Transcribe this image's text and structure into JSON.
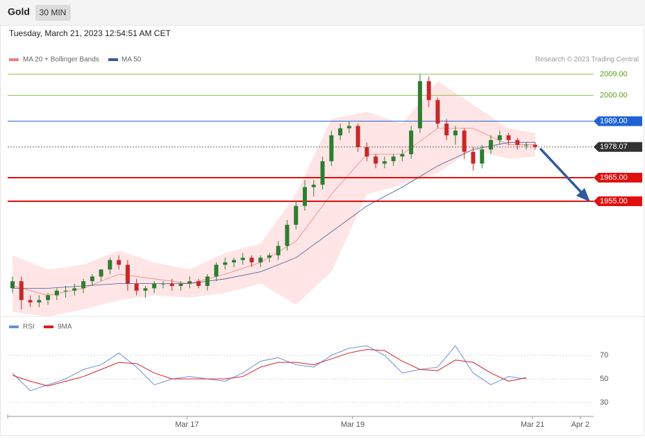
{
  "header": {
    "symbol": "Gold",
    "interval": "30 MIN",
    "timestamp": "Tuesday, March 21, 2023 12:54:51 AM CET",
    "credit": "Research © 2023 Trading Central"
  },
  "chart_data": [
    {
      "type": "candlestick",
      "up_color": "#2e7d32",
      "down_color": "#c62828",
      "xlim": [
        -0.55,
        65.6
      ],
      "ylim": [
        1907.2,
        2012.5
      ],
      "xticks": [
        {
          "value": 19.7,
          "label": "Mar 17"
        },
        {
          "value": 38.4,
          "label": "Mar 19"
        },
        {
          "value": 58.7,
          "label": "Mar 21"
        },
        {
          "value": 64.1,
          "label": "Apr 2"
        }
      ],
      "open": [
        1918,
        1921,
        1913,
        1912,
        1913,
        1915,
        1917,
        1917,
        1918,
        1921,
        1923,
        1926,
        1930,
        1928,
        1920,
        1917,
        1918,
        1920,
        1920,
        1919,
        1920,
        1921,
        1919,
        1923,
        1928,
        1929,
        1930,
        1931,
        1929,
        1931,
        1932,
        1936,
        1945,
        1953,
        1961,
        1962,
        1972,
        1983,
        1986,
        1987,
        1978,
        1974,
        1971,
        1972,
        1974,
        1975,
        1986,
        2006,
        1998,
        1988,
        1983,
        1985,
        1976,
        1971,
        1977,
        1981,
        1983,
        1981,
        1979,
        1979
      ],
      "high": [
        1923,
        1923,
        1915,
        1915,
        1916,
        1918,
        1919,
        1920,
        1922,
        1924,
        1926,
        1931,
        1932,
        1930,
        1922,
        1919,
        1921,
        1921,
        1922,
        1921,
        1923,
        1922,
        1924,
        1929,
        1931,
        1931,
        1933,
        1932,
        1932,
        1933,
        1938,
        1947,
        1955,
        1964,
        1964,
        1974,
        1985,
        1988,
        1989,
        1988,
        1980,
        1975,
        1974,
        1975,
        1977,
        1987,
        2009,
        2008,
        1999,
        1990,
        1987,
        1986,
        1978,
        1979,
        1983,
        1985,
        1984,
        1982,
        1980,
        1980
      ],
      "low": [
        1916,
        1909,
        1910,
        1910,
        1911,
        1913,
        1914,
        1915,
        1916,
        1919,
        1921,
        1924,
        1926,
        1917,
        1915,
        1914,
        1916,
        1918,
        1917,
        1917,
        1918,
        1918,
        1917,
        1921,
        1926,
        1927,
        1928,
        1927,
        1927,
        1929,
        1930,
        1934,
        1943,
        1951,
        1957,
        1960,
        1970,
        1981,
        1984,
        1976,
        1972,
        1969,
        1969,
        1970,
        1972,
        1973,
        1984,
        1995,
        1986,
        1981,
        1979,
        1973,
        1968,
        1969,
        1975,
        1979,
        1979,
        1977,
        1977,
        1977
      ],
      "close": [
        1921,
        1913,
        1912,
        1913,
        1915,
        1917,
        1917,
        1918,
        1921,
        1923,
        1926,
        1930,
        1928,
        1920,
        1917,
        1918,
        1920,
        1920,
        1919,
        1920,
        1921,
        1919,
        1923,
        1928,
        1929,
        1930,
        1931,
        1929,
        1931,
        1932,
        1936,
        1945,
        1953,
        1961,
        1962,
        1972,
        1983,
        1986,
        1987,
        1978,
        1974,
        1971,
        1972,
        1974,
        1975,
        1985,
        2006,
        1998,
        1988,
        1983,
        1985,
        1976,
        1971,
        1977,
        1981,
        1983,
        1981,
        1979,
        1979,
        1978.07
      ],
      "overlay_x": [
        0,
        4,
        8,
        12,
        16,
        20,
        24,
        28,
        32,
        36,
        40,
        44,
        48,
        52,
        56,
        59
      ],
      "bands": {
        "name": "MA 20 + Bollinger Bands",
        "color": "#f08080",
        "fill": "#ffdede",
        "upper": [
          1932,
          1926,
          1928,
          1934,
          1929,
          1926,
          1933,
          1937,
          1958,
          1990,
          1993,
          1988,
          2006,
          1996,
          1986,
          1984
        ],
        "middle": [
          1919,
          1915,
          1918,
          1924,
          1922,
          1920,
          1924,
          1929,
          1938,
          1958,
          1975,
          1975,
          1986,
          1986,
          1979,
          1979
        ],
        "lower": [
          1908,
          1906,
          1909,
          1913,
          1915,
          1914,
          1916,
          1920,
          1911,
          1925,
          1958,
          1962,
          1967,
          1977,
          1973,
          1974
        ]
      },
      "series": [
        {
          "name": "MA 50",
          "color": "#3a5a98",
          "values": [
            1918,
            1918,
            1919,
            1920,
            1920,
            1920,
            1922,
            1925,
            1931,
            1942,
            1953,
            1961,
            1970,
            1977,
            1980,
            1980
          ]
        }
      ],
      "levels": [
        {
          "value": 2009,
          "label": "2009.00",
          "color": "#8bc34a",
          "box": false,
          "dash": false
        },
        {
          "value": 2000,
          "label": "2000.00",
          "color": "#8bc34a",
          "box": false,
          "dash": false
        },
        {
          "value": 1989,
          "label": "1989.00",
          "color": "#1e63d6",
          "box": true,
          "dash": false
        },
        {
          "value": 1978.07,
          "label": "1978.07",
          "color": "#333333",
          "box": true,
          "dash": true
        },
        {
          "value": 1965,
          "label": "1965.00",
          "color": "#e01010",
          "box": true,
          "dash": false
        },
        {
          "value": 1955,
          "label": "1955.00",
          "color": "#e01010",
          "box": true,
          "dash": false
        }
      ]
    },
    {
      "type": "line",
      "xlim": [
        -0.55,
        65.6
      ],
      "ylim": [
        24.1,
        88.8
      ],
      "yticks": [
        30,
        50,
        70
      ],
      "x": [
        0,
        2,
        4,
        6,
        8,
        10,
        12,
        14,
        16,
        18,
        20,
        22,
        24,
        26,
        28,
        30,
        32,
        34,
        36,
        38,
        40,
        42,
        44,
        46,
        48,
        50,
        52,
        54,
        56,
        58
      ],
      "series": [
        {
          "name": "RSI",
          "color": "#6a8fd8",
          "values": [
            55,
            40,
            45,
            50,
            58,
            62,
            72,
            60,
            45,
            50,
            52,
            50,
            48,
            55,
            65,
            68,
            62,
            60,
            70,
            76,
            78,
            70,
            55,
            58,
            60,
            78,
            55,
            45,
            52,
            50
          ]
        },
        {
          "name": "9MA",
          "color": "#d42020",
          "values": [
            53,
            48,
            44,
            48,
            52,
            58,
            64,
            63,
            55,
            50,
            50,
            50,
            50,
            52,
            60,
            64,
            64,
            62,
            67,
            72,
            75,
            74,
            65,
            58,
            57,
            66,
            64,
            55,
            48,
            51
          ]
        }
      ]
    }
  ]
}
